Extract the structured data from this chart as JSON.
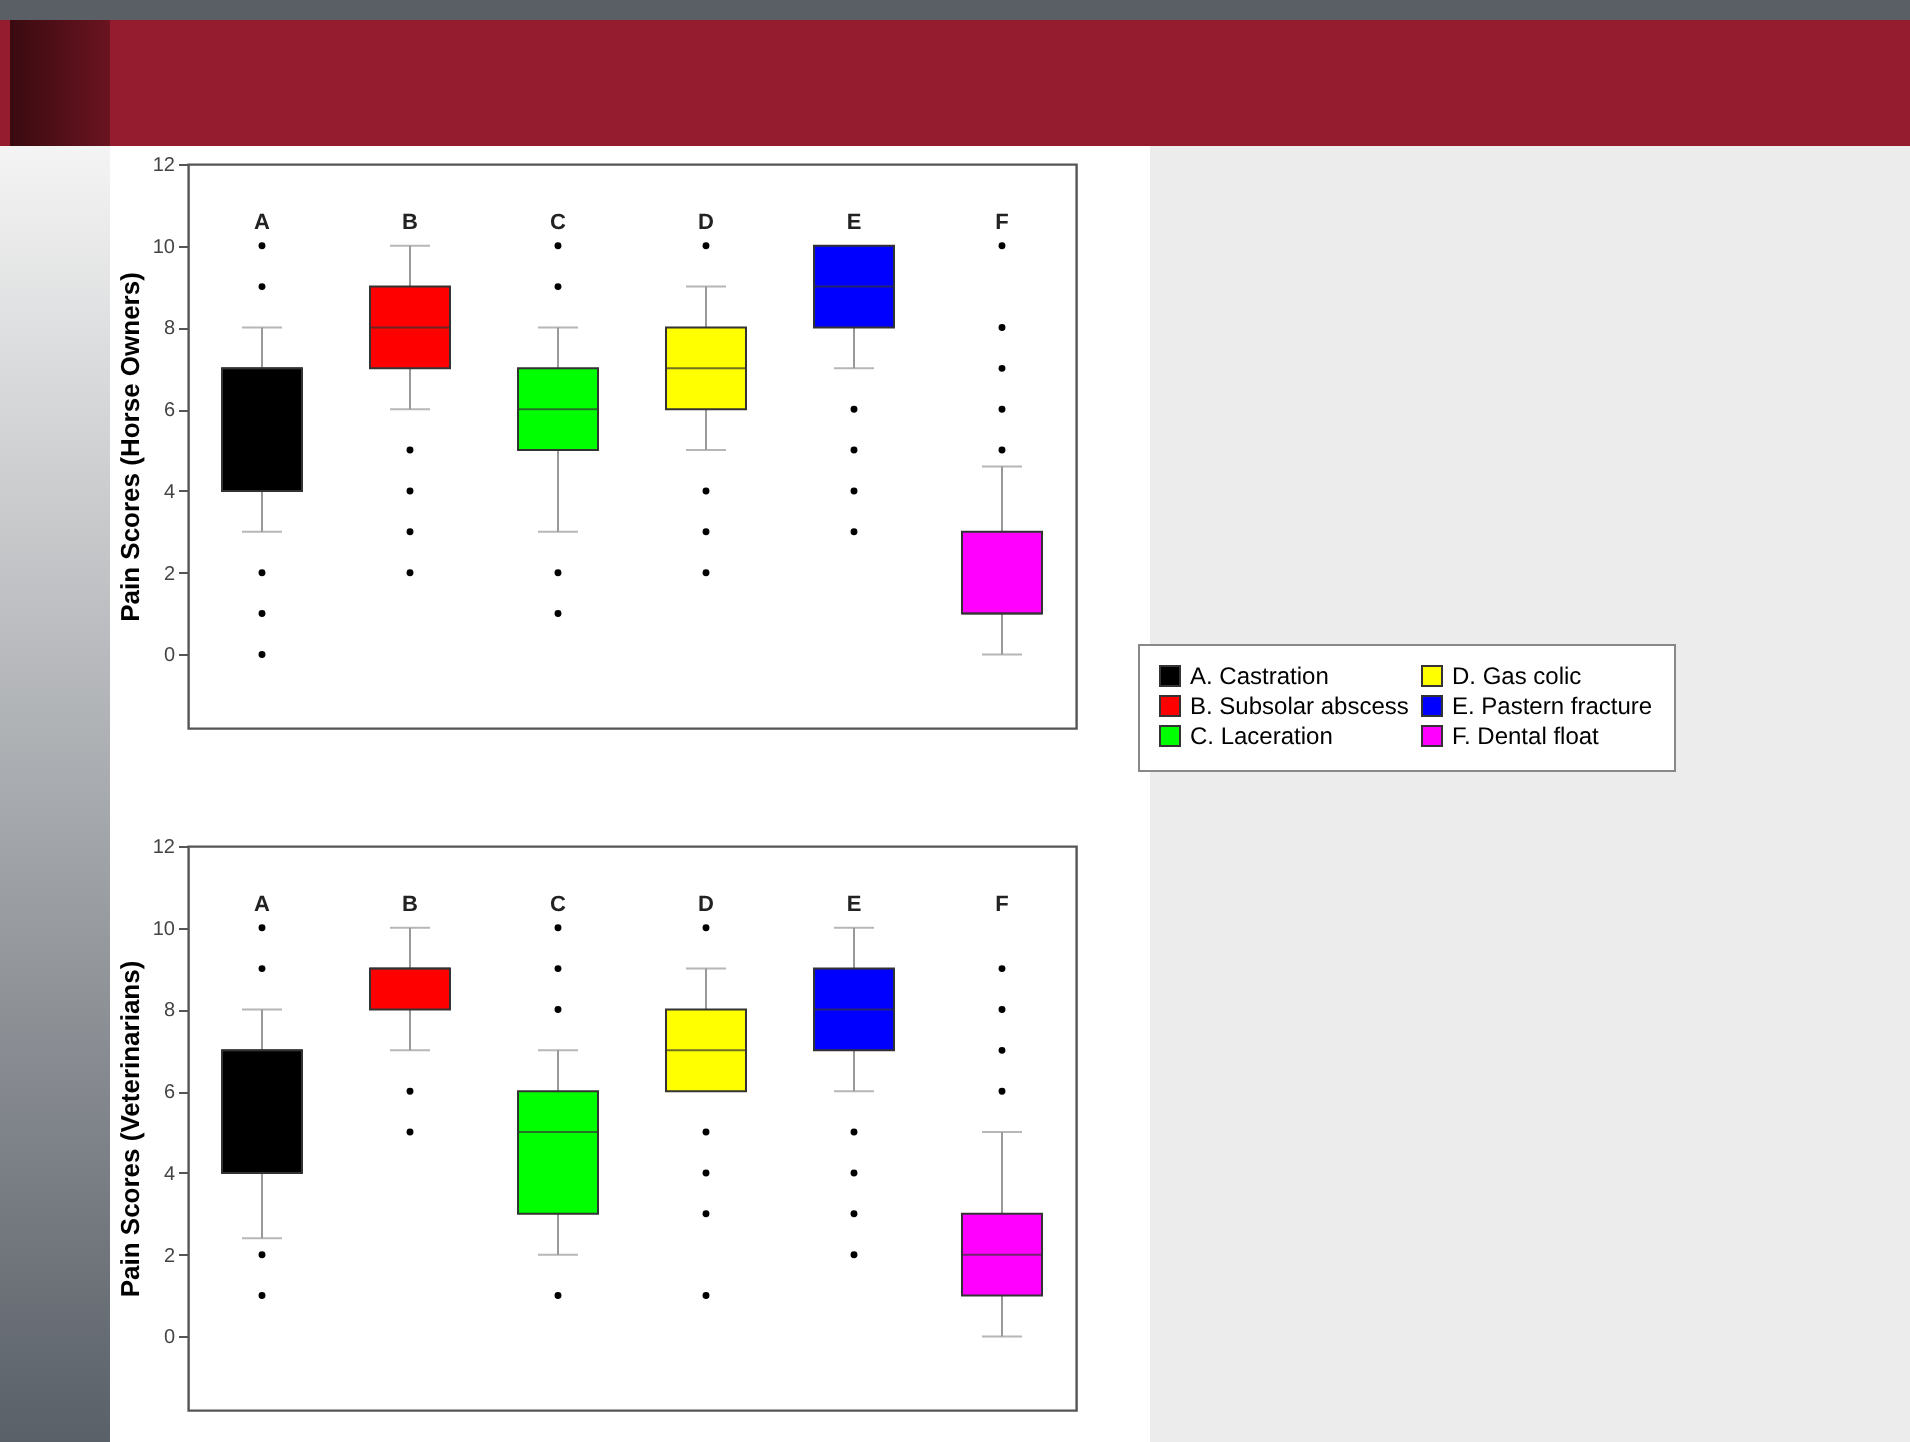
{
  "chart_data": [
    {
      "type": "box",
      "ylabel": "Pain Scores (Horse Owners)",
      "categories": [
        "A",
        "B",
        "C",
        "D",
        "E",
        "F"
      ],
      "ylim": [
        -1.8,
        12
      ],
      "yticks": [
        0,
        2,
        4,
        6,
        8,
        10,
        12
      ],
      "legend": "right",
      "series": [
        {
          "name": "A. Castration",
          "color": "#000000",
          "boxes": [
            {
              "low": 3,
              "q1": 4,
              "median": 7,
              "q3": 7,
              "high": 8,
              "outliers": [
                10,
                9,
                2,
                1,
                0
              ]
            },
            null,
            null,
            null,
            null,
            null
          ]
        },
        {
          "name": "B. Subsolar abscess",
          "color": "#ff0000",
          "boxes": [
            null,
            {
              "low": 6,
              "q1": 7,
              "median": 8,
              "q3": 9,
              "high": 10,
              "outliers": [
                5,
                4,
                3,
                2
              ]
            },
            null,
            null,
            null,
            null
          ]
        },
        {
          "name": "C. Laceration",
          "color": "#00ff00",
          "boxes": [
            null,
            null,
            {
              "low": 3,
              "q1": 5,
              "median": 6,
              "q3": 7,
              "high": 8,
              "outliers": [
                10,
                9,
                2,
                1
              ]
            },
            null,
            null,
            null
          ]
        },
        {
          "name": "D. Gas colic",
          "color": "#ffff00",
          "boxes": [
            null,
            null,
            null,
            {
              "low": 5,
              "q1": 6,
              "median": 7,
              "q3": 8,
              "high": 9,
              "outliers": [
                10,
                4,
                3,
                2
              ]
            },
            null,
            null
          ]
        },
        {
          "name": "E. Pastern fracture",
          "color": "#0000ff",
          "boxes": [
            null,
            null,
            null,
            null,
            {
              "low": 7,
              "q1": 8,
              "median": 9,
              "q3": 10,
              "high": 10,
              "outliers": [
                6,
                5,
                4,
                3
              ]
            },
            null
          ]
        },
        {
          "name": "F. Dental float",
          "color": "#ff00ff",
          "boxes": [
            null,
            null,
            null,
            null,
            null,
            {
              "low": 0,
              "q1": 1,
              "median": 1,
              "q3": 3,
              "high": 4.6,
              "outliers": [
                10,
                8,
                7,
                6,
                5
              ]
            }
          ]
        }
      ]
    },
    {
      "type": "box",
      "ylabel": "Pain Scores (Veterinarians)",
      "categories": [
        "A",
        "B",
        "C",
        "D",
        "E",
        "F"
      ],
      "ylim": [
        -1.8,
        12
      ],
      "yticks": [
        0,
        2,
        4,
        6,
        8,
        10,
        12
      ],
      "series": [
        {
          "color": "#000000",
          "boxes": [
            {
              "low": 2.4,
              "q1": 4,
              "median": 7,
              "q3": 7,
              "high": 8,
              "outliers": [
                10,
                9,
                2,
                1
              ]
            },
            null,
            null,
            null,
            null,
            null
          ]
        },
        {
          "color": "#ff0000",
          "boxes": [
            null,
            {
              "low": 7,
              "q1": 8,
              "median": 9,
              "q3": 9,
              "high": 10,
              "outliers": [
                6,
                5
              ]
            },
            null,
            null,
            null,
            null
          ]
        },
        {
          "color": "#00ff00",
          "boxes": [
            null,
            null,
            {
              "low": 2,
              "q1": 3,
              "median": 5,
              "q3": 6,
              "high": 7,
              "outliers": [
                10,
                9,
                8,
                1
              ]
            },
            null,
            null,
            null
          ]
        },
        {
          "color": "#ffff00",
          "boxes": [
            null,
            null,
            null,
            {
              "low": 6,
              "q1": 6,
              "median": 7,
              "q3": 8,
              "high": 9,
              "outliers": [
                10,
                5,
                4,
                3,
                1
              ]
            },
            null,
            null
          ]
        },
        {
          "color": "#0000ff",
          "boxes": [
            null,
            null,
            null,
            null,
            {
              "low": 6,
              "q1": 7,
              "median": 8,
              "q3": 9,
              "high": 10,
              "outliers": [
                5,
                4,
                3,
                2
              ]
            },
            null
          ]
        },
        {
          "color": "#ff00ff",
          "boxes": [
            null,
            null,
            null,
            null,
            null,
            {
              "low": 0,
              "q1": 1,
              "median": 2,
              "q3": 3,
              "high": 5,
              "outliers": [
                9,
                8,
                7,
                6
              ]
            }
          ]
        }
      ]
    }
  ]
}
